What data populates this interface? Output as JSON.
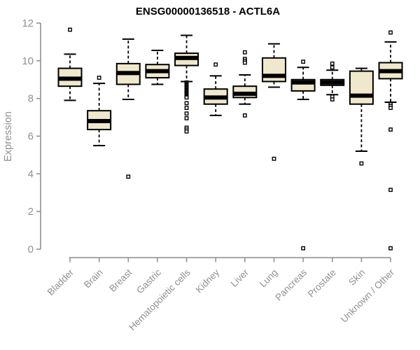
{
  "chart_data": {
    "type": "boxplot",
    "title": "ENSG00000136518 - ACTL6A",
    "xlabel": "",
    "ylabel": "Expression",
    "ylim": [
      0,
      12
    ],
    "yticks": [
      0,
      2,
      4,
      6,
      8,
      10,
      12
    ],
    "grid": false,
    "legend": false,
    "categories": [
      "Bladder",
      "Brain",
      "Breast",
      "Gastric",
      "Hematopoietic cells",
      "Kidney",
      "Liver",
      "Lung",
      "Pancreas",
      "Prostate",
      "Skin",
      "Unknown / Other"
    ],
    "series": [
      {
        "category": "Bladder",
        "whisker_low": 7.9,
        "q1": 8.65,
        "median": 9.05,
        "q3": 9.6,
        "whisker_high": 10.35,
        "outliers": [
          11.65
        ]
      },
      {
        "category": "Brain",
        "whisker_low": 5.5,
        "q1": 6.35,
        "median": 6.8,
        "q3": 7.35,
        "whisker_high": 8.8,
        "outliers": [
          9.1
        ]
      },
      {
        "category": "Breast",
        "whisker_low": 7.95,
        "q1": 8.75,
        "median": 9.35,
        "q3": 9.85,
        "whisker_high": 11.15,
        "outliers": [
          3.85
        ]
      },
      {
        "category": "Gastric",
        "whisker_low": 8.75,
        "q1": 9.1,
        "median": 9.45,
        "q3": 9.8,
        "whisker_high": 10.55,
        "outliers": []
      },
      {
        "category": "Hematopoietic cells",
        "whisker_low": 8.9,
        "q1": 9.75,
        "median": 10.15,
        "q3": 10.4,
        "whisker_high": 11.35,
        "outliers": [
          8.85,
          8.8,
          8.75,
          8.7,
          8.65,
          8.6,
          8.55,
          8.5,
          8.45,
          8.4,
          8.35,
          8.3,
          8.25,
          8.2,
          8.15,
          8.1,
          8.05,
          7.75,
          7.5,
          7.2,
          6.95,
          6.45,
          6.35,
          6.25
        ]
      },
      {
        "category": "Kidney",
        "whisker_low": 7.1,
        "q1": 7.7,
        "median": 8.05,
        "q3": 8.5,
        "whisker_high": 9.2,
        "outliers": [
          9.8
        ]
      },
      {
        "category": "Liver",
        "whisker_low": 7.7,
        "q1": 8.05,
        "median": 8.25,
        "q3": 8.65,
        "whisker_high": 9.25,
        "outliers": [
          10.45,
          10.1,
          10.0,
          9.9,
          7.1
        ]
      },
      {
        "category": "Lung",
        "whisker_low": 8.6,
        "q1": 8.9,
        "median": 9.2,
        "q3": 10.15,
        "whisker_high": 10.9,
        "outliers": [
          4.8
        ]
      },
      {
        "category": "Pancreas",
        "whisker_low": 7.95,
        "q1": 8.4,
        "median": 8.85,
        "q3": 9.0,
        "whisker_high": 9.65,
        "outliers": [
          9.95,
          0.05
        ]
      },
      {
        "category": "Prostate",
        "whisker_low": 8.2,
        "q1": 8.7,
        "median": 8.85,
        "q3": 9.0,
        "whisker_high": 9.5,
        "outliers": [
          9.85,
          9.65,
          8.1,
          7.95
        ]
      },
      {
        "category": "Skin",
        "whisker_low": 5.2,
        "q1": 7.7,
        "median": 8.15,
        "q3": 9.45,
        "whisker_high": 9.6,
        "outliers": [
          4.55
        ]
      },
      {
        "category": "Unknown / Other",
        "whisker_low": 7.8,
        "q1": 9.05,
        "median": 9.45,
        "q3": 9.9,
        "whisker_high": 11.0,
        "outliers": [
          11.5,
          7.7,
          7.6,
          7.5,
          6.35,
          3.15,
          0.05
        ]
      }
    ],
    "colors": {
      "box_fill": "#EFE8CC",
      "box_border": "#000000",
      "median": "#000000",
      "axis": "#8C8C8C",
      "tick_label": "#909090",
      "title": "#000000",
      "background": "#FFFFFF"
    }
  }
}
